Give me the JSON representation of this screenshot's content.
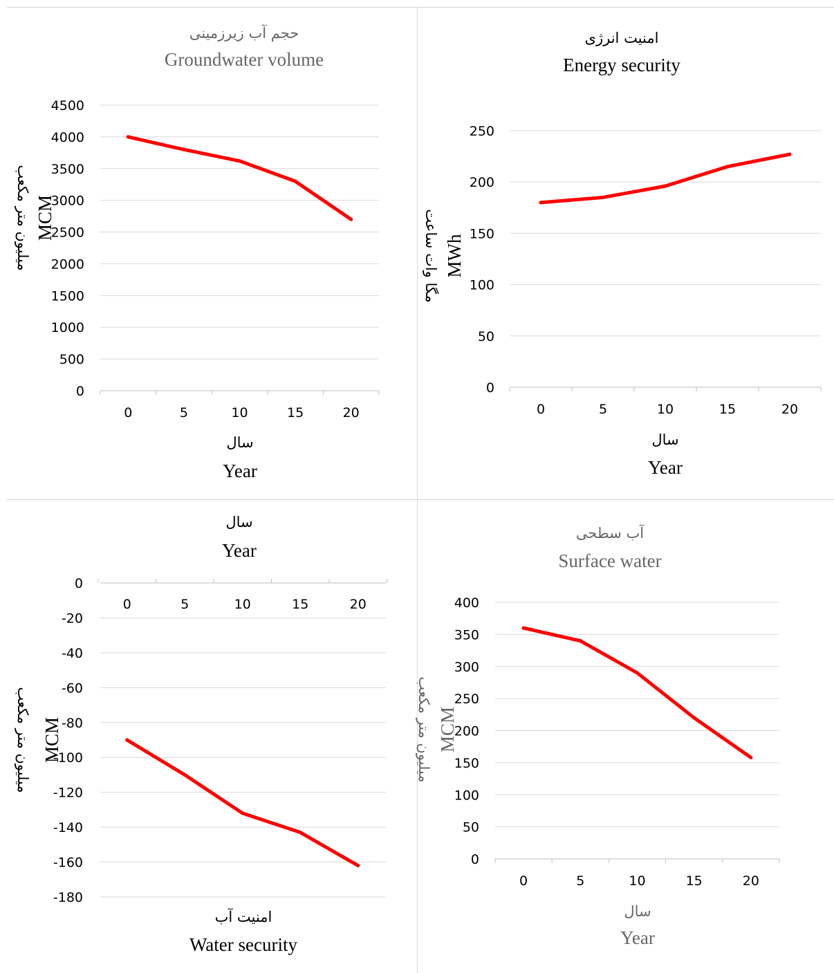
{
  "chart_data": [
    {
      "id": "groundwater",
      "type": "line",
      "title_fa": "حجم آب زیرزمینی",
      "title_en": "Groundwater volume",
      "ylabel_fa": "میلیون متر مکعب",
      "ylabel_en": "MCM",
      "xlabel_fa": "سال",
      "xlabel_en": "Year",
      "x": [
        0,
        5,
        10,
        15,
        20
      ],
      "x_tick_labels": [
        "0",
        "5",
        "10",
        "15",
        "20"
      ],
      "y_tick_labels": [
        "4500",
        "4000",
        "3500",
        "3000",
        "2500",
        "2000",
        "1500",
        "1000",
        "500",
        "0"
      ],
      "ylim": [
        0,
        4500
      ],
      "series": [
        {
          "values": [
            4000,
            3800,
            3620,
            3300,
            2700
          ],
          "color": "#ff0000"
        }
      ],
      "grid": true,
      "x_axis_position": "bottom",
      "title_color": "#666666"
    },
    {
      "id": "energy",
      "type": "line",
      "title_fa": "امنیت انرژی",
      "title_en": "Energy security",
      "ylabel_fa": "مگا وات ساعت",
      "ylabel_en": "MWh",
      "xlabel_fa": "سال",
      "xlabel_en": "Year",
      "x": [
        0,
        5,
        10,
        15,
        20
      ],
      "x_tick_labels": [
        "0",
        "5",
        "10",
        "15",
        "20"
      ],
      "y_tick_labels": [
        "250",
        "200",
        "150",
        "100",
        "50",
        "0"
      ],
      "ylim": [
        0,
        250
      ],
      "series": [
        {
          "values": [
            180,
            185,
            196,
            215,
            227
          ],
          "color": "#ff0000"
        }
      ],
      "grid": true,
      "x_axis_position": "bottom",
      "title_color": "#000000"
    },
    {
      "id": "water_security",
      "type": "line",
      "title_fa": "امنیت آب",
      "title_en": "Water security",
      "ylabel_fa": "میلیون متر مکعب",
      "ylabel_en": "MCM",
      "xlabel_fa": "سال",
      "xlabel_en": "Year",
      "x": [
        0,
        5,
        10,
        15,
        20
      ],
      "x_tick_labels": [
        "0",
        "5",
        "10",
        "15",
        "20"
      ],
      "y_tick_labels": [
        "0",
        "-20",
        "-40",
        "-60",
        "-80",
        "-100",
        "-120",
        "-140",
        "-160",
        "-180"
      ],
      "ylim": [
        -180,
        0
      ],
      "series": [
        {
          "values": [
            -90,
            -110,
            -132,
            -143,
            -162
          ],
          "color": "#ff0000"
        }
      ],
      "grid": true,
      "x_axis_position": "top",
      "title_position": "bottom",
      "title_color": "#000000"
    },
    {
      "id": "surface_water",
      "type": "line",
      "title_fa": "آب سطحی",
      "title_en": "Surface water",
      "ylabel_fa": "میلیون متر مکعب",
      "ylabel_en": "MCM",
      "xlabel_fa": "سال",
      "xlabel_en": "Year",
      "x": [
        0,
        5,
        10,
        15,
        20
      ],
      "x_tick_labels": [
        "0",
        "5",
        "10",
        "15",
        "20"
      ],
      "y_tick_labels": [
        "400",
        "350",
        "300",
        "250",
        "200",
        "150",
        "100",
        "50",
        "0"
      ],
      "ylim": [
        0,
        400
      ],
      "series": [
        {
          "values": [
            360,
            340,
            290,
            220,
            158
          ],
          "color": "#ff0000"
        }
      ],
      "grid": true,
      "x_axis_position": "bottom",
      "title_color": "#666666"
    }
  ]
}
